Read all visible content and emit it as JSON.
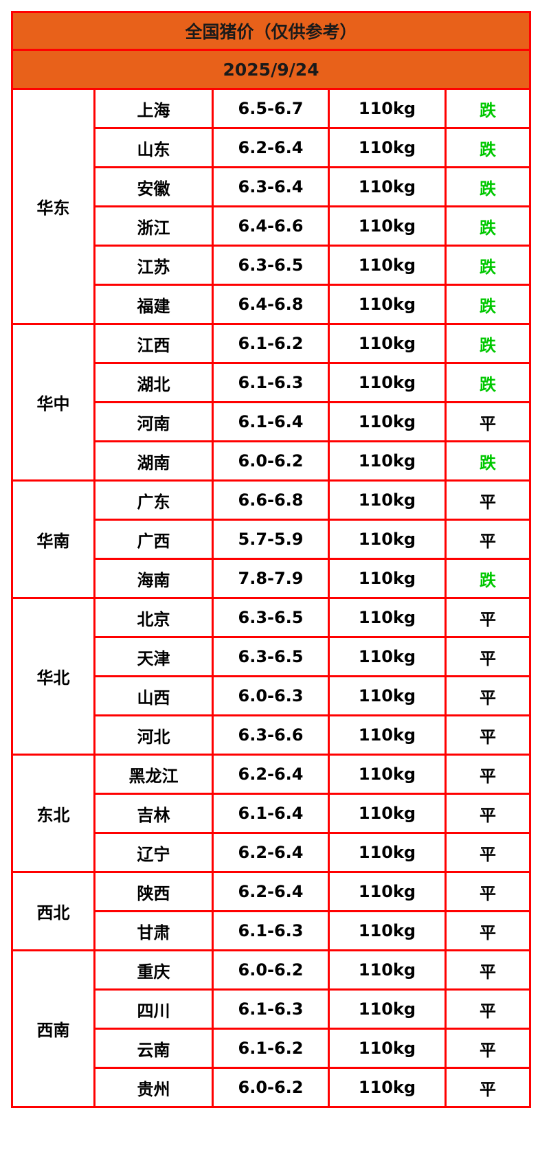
{
  "title": "全国猪价（仅供参考）",
  "date": "2025/9/24",
  "colors": {
    "header_bg": "#e8611a",
    "border": "#ff0000",
    "fall": "#00c800",
    "flat": "#000000"
  },
  "regions": [
    {
      "name": "华东",
      "rows": [
        {
          "province": "上海",
          "price": "6.5-6.7",
          "weight": "110kg",
          "trend": "跌"
        },
        {
          "province": "山东",
          "price": "6.2-6.4",
          "weight": "110kg",
          "trend": "跌"
        },
        {
          "province": "安徽",
          "price": "6.3-6.4",
          "weight": "110kg",
          "trend": "跌"
        },
        {
          "province": "浙江",
          "price": "6.4-6.6",
          "weight": "110kg",
          "trend": "跌"
        },
        {
          "province": "江苏",
          "price": "6.3-6.5",
          "weight": "110kg",
          "trend": "跌"
        },
        {
          "province": "福建",
          "price": "6.4-6.8",
          "weight": "110kg",
          "trend": "跌"
        }
      ]
    },
    {
      "name": "华中",
      "rows": [
        {
          "province": "江西",
          "price": "6.1-6.2",
          "weight": "110kg",
          "trend": "跌"
        },
        {
          "province": "湖北",
          "price": "6.1-6.3",
          "weight": "110kg",
          "trend": "跌"
        },
        {
          "province": "河南",
          "price": "6.1-6.4",
          "weight": "110kg",
          "trend": "平"
        },
        {
          "province": "湖南",
          "price": "6.0-6.2",
          "weight": "110kg",
          "trend": "跌"
        }
      ]
    },
    {
      "name": "华南",
      "rows": [
        {
          "province": "广东",
          "price": "6.6-6.8",
          "weight": "110kg",
          "trend": "平"
        },
        {
          "province": "广西",
          "price": "5.7-5.9",
          "weight": "110kg",
          "trend": "平"
        },
        {
          "province": "海南",
          "price": "7.8-7.9",
          "weight": "110kg",
          "trend": "跌"
        }
      ]
    },
    {
      "name": "华北",
      "rows": [
        {
          "province": "北京",
          "price": "6.3-6.5",
          "weight": "110kg",
          "trend": "平"
        },
        {
          "province": "天津",
          "price": "6.3-6.5",
          "weight": "110kg",
          "trend": "平"
        },
        {
          "province": "山西",
          "price": "6.0-6.3",
          "weight": "110kg",
          "trend": "平"
        },
        {
          "province": "河北",
          "price": "6.3-6.6",
          "weight": "110kg",
          "trend": "平"
        }
      ]
    },
    {
      "name": "东北",
      "rows": [
        {
          "province": "黑龙江",
          "price": "6.2-6.4",
          "weight": "110kg",
          "trend": "平"
        },
        {
          "province": "吉林",
          "price": "6.1-6.4",
          "weight": "110kg",
          "trend": "平"
        },
        {
          "province": "辽宁",
          "price": "6.2-6.4",
          "weight": "110kg",
          "trend": "平"
        }
      ]
    },
    {
      "name": "西北",
      "rows": [
        {
          "province": "陕西",
          "price": "6.2-6.4",
          "weight": "110kg",
          "trend": "平"
        },
        {
          "province": "甘肃",
          "price": "6.1-6.3",
          "weight": "110kg",
          "trend": "平"
        }
      ]
    },
    {
      "name": "西南",
      "rows": [
        {
          "province": "重庆",
          "price": "6.0-6.2",
          "weight": "110kg",
          "trend": "平"
        },
        {
          "province": "四川",
          "price": "6.1-6.3",
          "weight": "110kg",
          "trend": "平"
        },
        {
          "province": "云南",
          "price": "6.1-6.2",
          "weight": "110kg",
          "trend": "平"
        },
        {
          "province": "贵州",
          "price": "6.0-6.2",
          "weight": "110kg",
          "trend": "平"
        }
      ]
    }
  ]
}
